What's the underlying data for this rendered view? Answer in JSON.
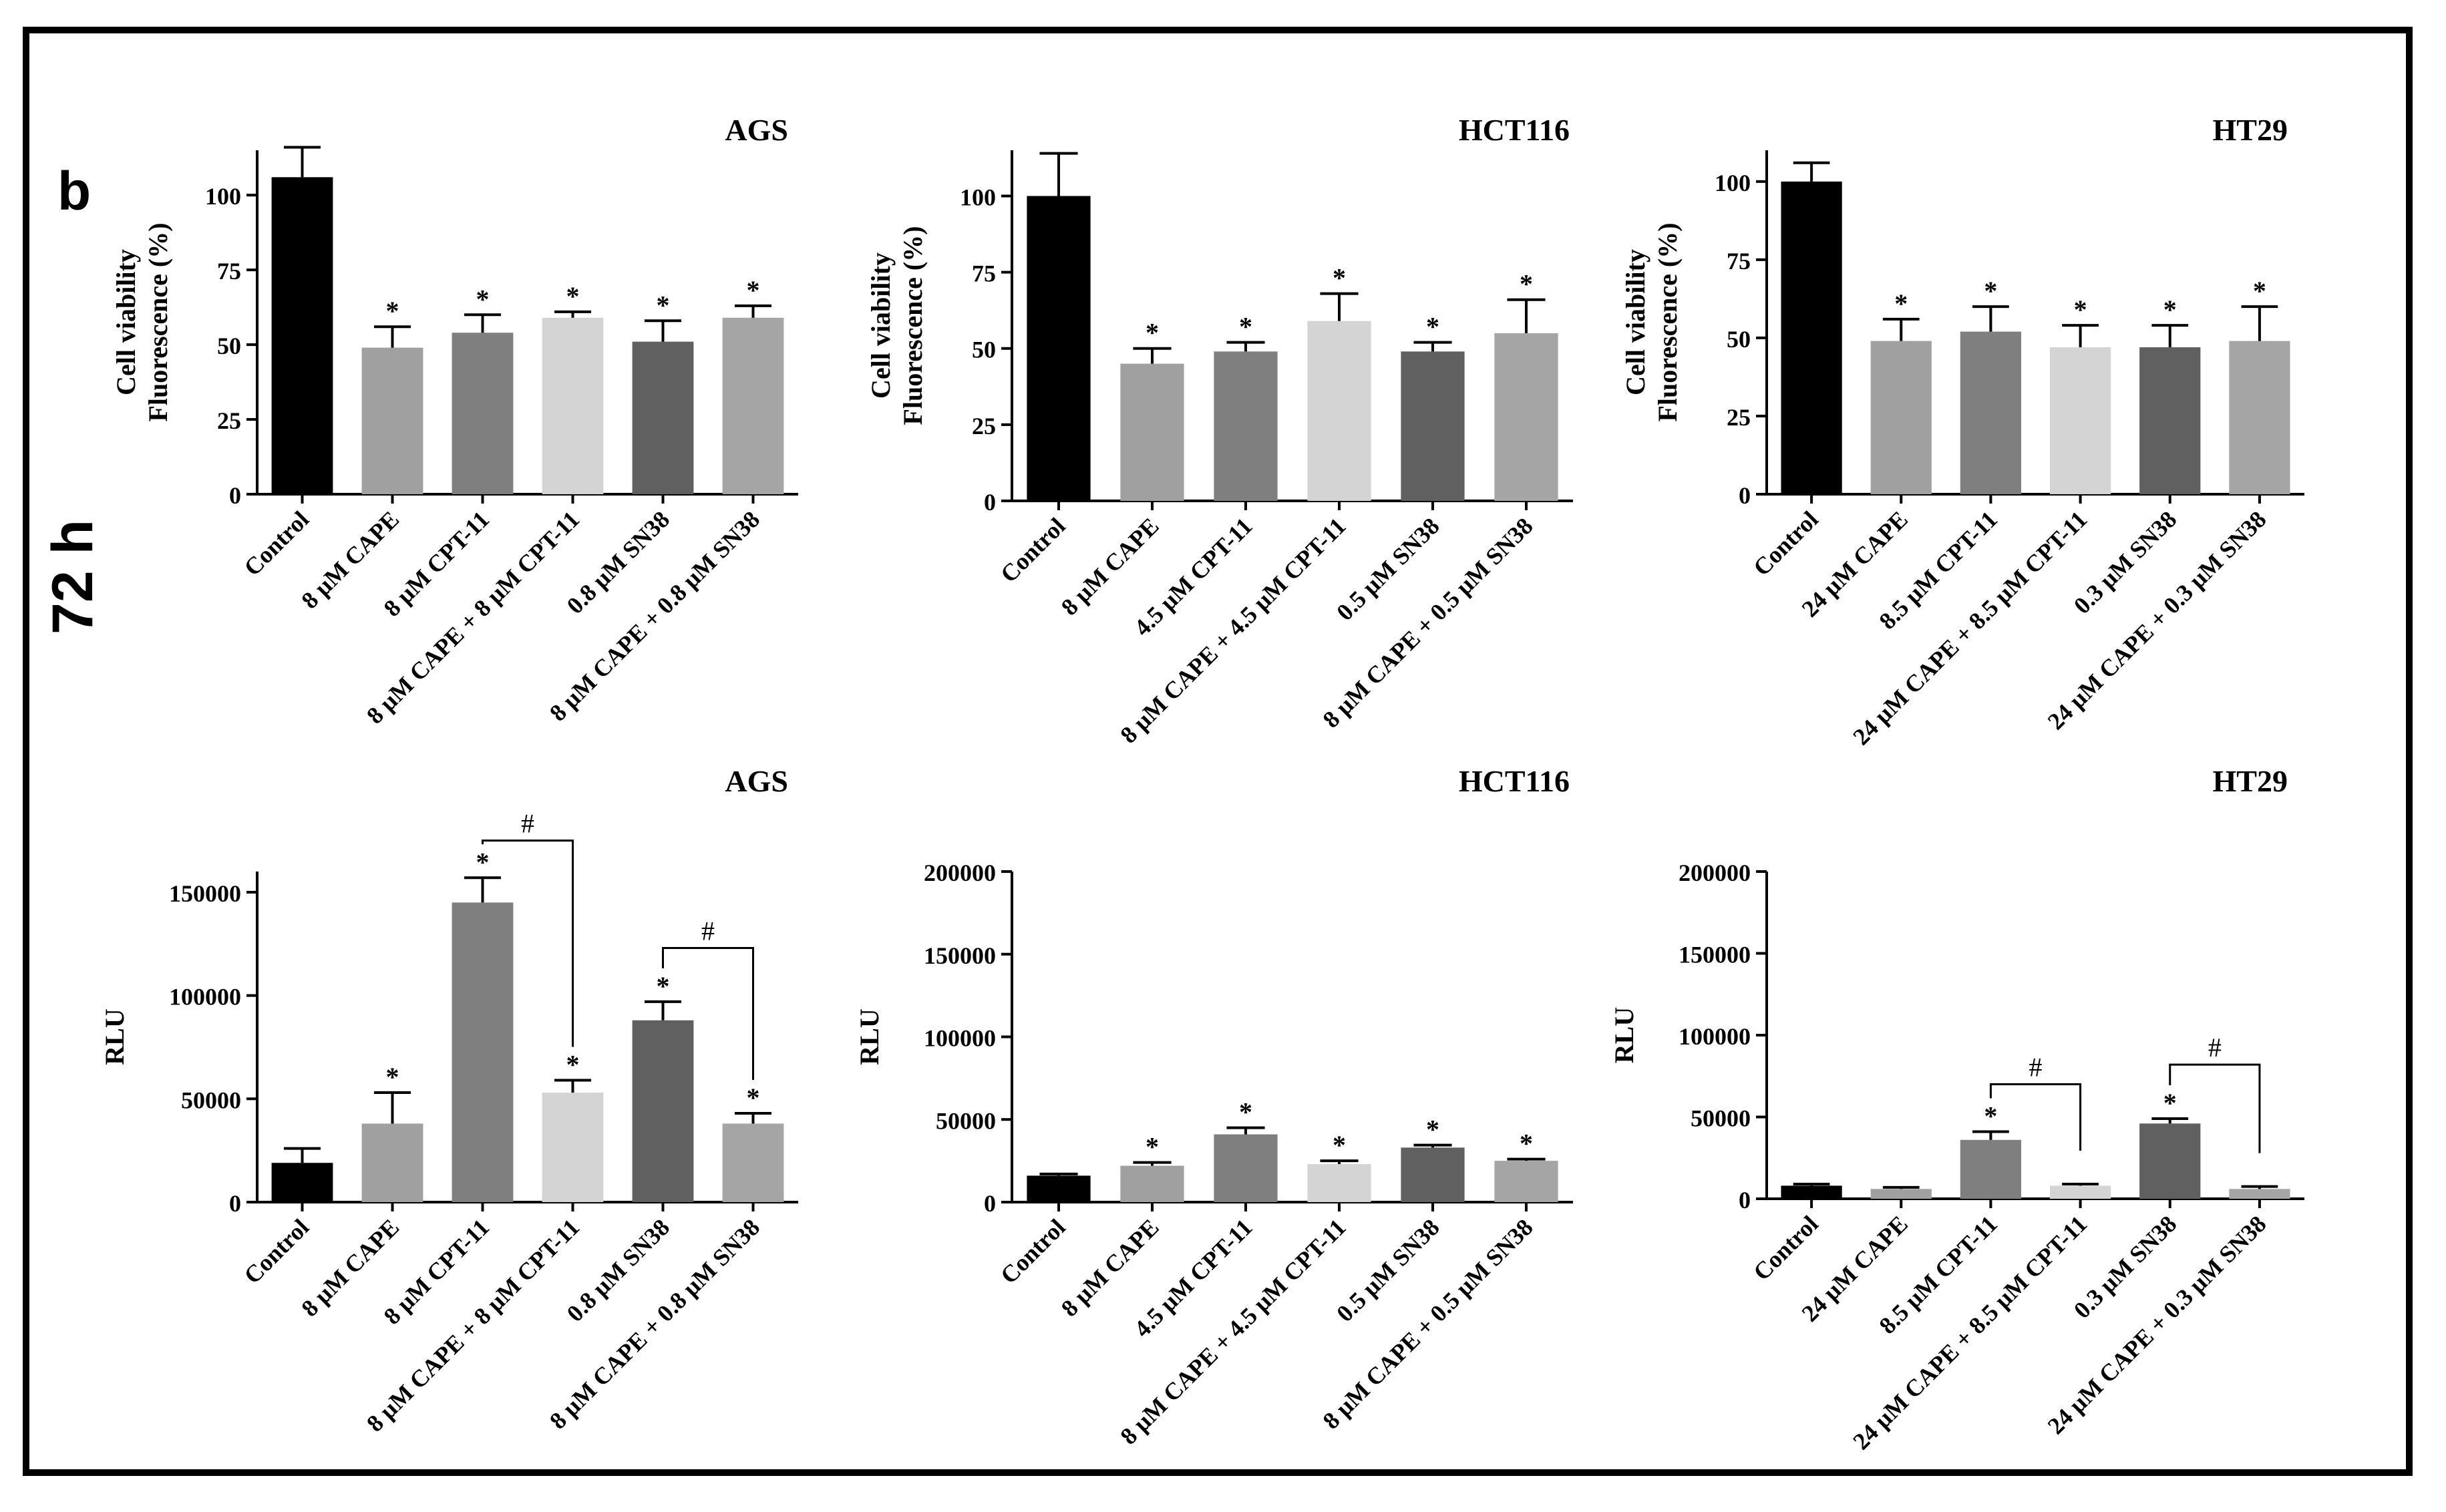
{
  "figure": {
    "panel_letter": "b",
    "time_label": "72 h"
  },
  "colors": {
    "control": "#000000",
    "cape": "#a0a0a0",
    "cpt": "#7f7f7f",
    "cape_cpt": "#d4d4d4",
    "sn38": "#606060",
    "cape_sn38": "#a5a5a5"
  },
  "chart_data": [
    {
      "type": "bar",
      "title": "AGS",
      "ylabel": [
        "Cell viability",
        "Fluorescence (%)"
      ],
      "ylim": [
        0,
        115
      ],
      "yticks": [
        0,
        25,
        50,
        75,
        100
      ],
      "categories": [
        "Control",
        "8 µM CAPE",
        "8 µM CPT-11",
        "8 µM CAPE + 8 µM CPT-11",
        "0.8 µM SN38",
        "8 µM CAPE + 0.8 µM SN38"
      ],
      "values": [
        106,
        49,
        54,
        59,
        51,
        59
      ],
      "errors": [
        10,
        7,
        6,
        2,
        7,
        4
      ],
      "annotations": [
        "",
        "*",
        "*",
        "*",
        "*",
        "*"
      ],
      "brackets": []
    },
    {
      "type": "bar",
      "title": "HCT116",
      "ylabel": [
        "Cell viability",
        "Fluorescence (%)"
      ],
      "ylim": [
        0,
        115
      ],
      "yticks": [
        0,
        25,
        50,
        75,
        100
      ],
      "categories": [
        "Control",
        "8 µM CAPE",
        "4.5 µM CPT-11",
        "8 µM CAPE + 4.5 µM CPT-11",
        "0.5 µM SN38",
        "8 µM CAPE + 0.5 µM SN38"
      ],
      "values": [
        100,
        45,
        49,
        59,
        49,
        55
      ],
      "errors": [
        14,
        5,
        3,
        9,
        3,
        11
      ],
      "annotations": [
        "",
        "*",
        "*",
        "*",
        "*",
        "*"
      ],
      "brackets": []
    },
    {
      "type": "bar",
      "title": "HT29",
      "ylabel": [
        "Cell viability",
        "Fluorescence (%)"
      ],
      "ylim": [
        0,
        110
      ],
      "yticks": [
        0,
        25,
        50,
        75,
        100
      ],
      "categories": [
        "Control",
        "24 µM CAPE",
        "8.5 µM CPT-11",
        "24 µM CAPE + 8.5 µM CPT-11",
        "0.3 µM SN38",
        "24 µM CAPE + 0.3 µM SN38"
      ],
      "values": [
        100,
        49,
        52,
        47,
        47,
        49
      ],
      "errors": [
        6,
        7,
        8,
        7,
        7,
        11
      ],
      "annotations": [
        "",
        "*",
        "*",
        "*",
        "*",
        "*"
      ],
      "brackets": []
    },
    {
      "type": "bar",
      "title": "AGS",
      "ylabel": [
        "RLU"
      ],
      "ylim": [
        0,
        160000
      ],
      "yticks": [
        0,
        50000,
        100000,
        150000
      ],
      "categories": [
        "Control",
        "8 µM CAPE",
        "8 µM CPT-11",
        "8 µM CAPE + 8 µM CPT-11",
        "0.8 µM SN38",
        "8 µM CAPE + 0.8 µM SN38"
      ],
      "values": [
        19000,
        38000,
        145000,
        53000,
        88000,
        38000
      ],
      "errors": [
        7000,
        15000,
        12000,
        6000,
        9000,
        5000
      ],
      "annotations": [
        "",
        "*",
        "*",
        "*",
        "*",
        "*"
      ],
      "brackets": [
        {
          "from": 2,
          "to": 3,
          "value": 175000,
          "label": "#"
        },
        {
          "from": 4,
          "to": 5,
          "value": 123000,
          "label": "#"
        }
      ]
    },
    {
      "type": "bar",
      "title": "HCT116",
      "ylabel": [
        "RLU"
      ],
      "ylim": [
        0,
        200000
      ],
      "yticks": [
        0,
        50000,
        100000,
        150000,
        200000
      ],
      "categories": [
        "Control",
        "8 µM CAPE",
        "4.5 µM CPT-11",
        "8 µM CAPE + 4.5 µM CPT-11",
        "0.5 µM SN38",
        "8 µM CAPE + 0.5 µM SN38"
      ],
      "values": [
        16000,
        22000,
        41000,
        23000,
        33000,
        25000
      ],
      "errors": [
        1000,
        2000,
        4000,
        2000,
        1500,
        1000
      ],
      "annotations": [
        "",
        "*",
        "*",
        "*",
        "*",
        "*"
      ],
      "brackets": []
    },
    {
      "type": "bar",
      "title": "HT29",
      "ylabel": [
        "RLU"
      ],
      "ylim": [
        0,
        200000
      ],
      "yticks": [
        0,
        50000,
        100000,
        150000,
        200000
      ],
      "categories": [
        "Control",
        "24 µM CAPE",
        "8.5 µM CPT-11",
        "24 µM CAPE + 8.5 µM CPT-11",
        "0.3 µM SN38",
        "24 µM CAPE + 0.3 µM SN38"
      ],
      "values": [
        8000,
        6000,
        36000,
        8000,
        46000,
        6000
      ],
      "errors": [
        1000,
        1000,
        5000,
        1000,
        3000,
        1500
      ],
      "annotations": [
        "",
        "",
        "*",
        "",
        "*",
        ""
      ],
      "brackets": [
        {
          "from": 2,
          "to": 3,
          "value": 70000,
          "label": "#"
        },
        {
          "from": 4,
          "to": 5,
          "value": 82000,
          "label": "#"
        }
      ]
    }
  ]
}
